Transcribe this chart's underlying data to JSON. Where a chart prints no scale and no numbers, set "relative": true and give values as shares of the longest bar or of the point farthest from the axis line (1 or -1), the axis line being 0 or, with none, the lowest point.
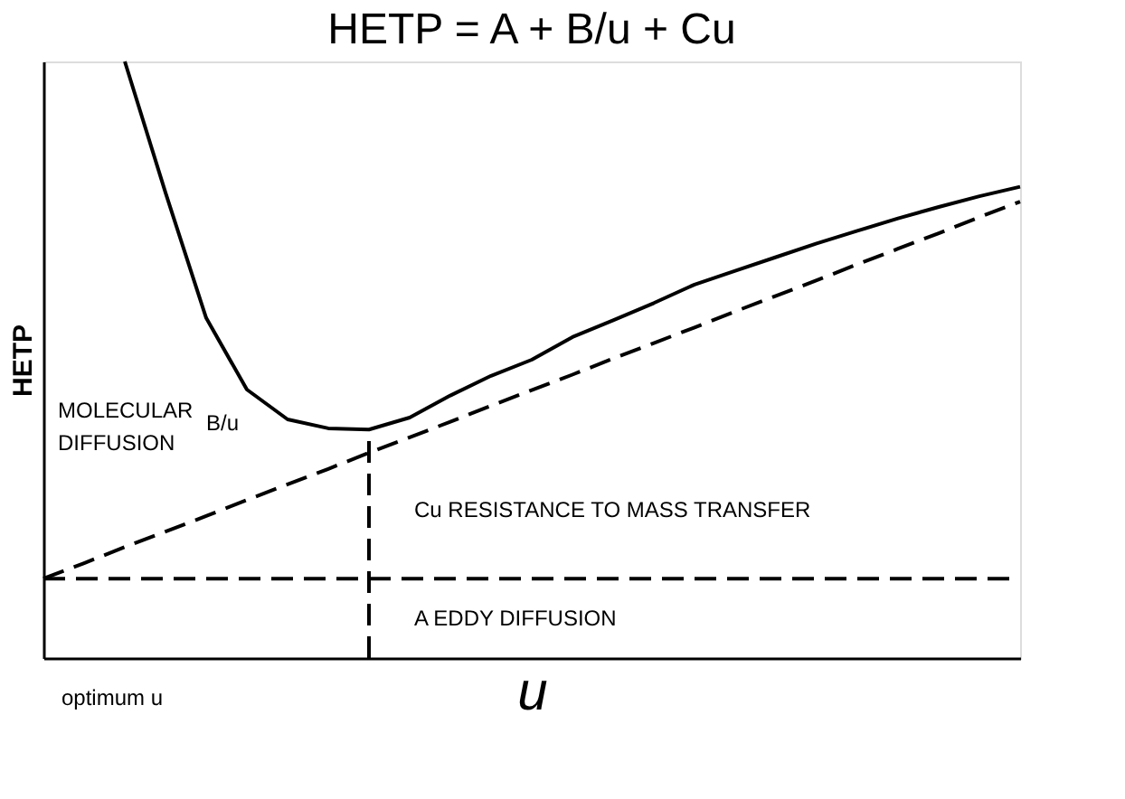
{
  "chart_data": {
    "type": "line",
    "title": "HETP  =  A + B/u + Cu",
    "xlabel": "u",
    "ylabel": "HETP",
    "relative": true,
    "tick_labels": false,
    "grid": false,
    "legend": false,
    "marker": "none",
    "categories": [
      null,
      null,
      null,
      null,
      null,
      null,
      null,
      null,
      null,
      null,
      null,
      null,
      null,
      null,
      null,
      null,
      null,
      null,
      null,
      null,
      null,
      null,
      null,
      null,
      null
    ],
    "series": [
      {
        "color": "#000000",
        "line_style": "solid",
        "values": [
          null,
          null,
          1.0,
          0.78,
          0.57,
          0.45,
          0.4,
          0.385,
          0.383,
          0.403,
          0.44,
          0.473,
          0.5,
          0.538,
          0.566,
          0.595,
          0.626,
          0.649,
          0.672,
          0.695,
          0.716,
          0.737,
          0.756,
          0.774,
          0.79
        ]
      },
      {
        "color": "#000000",
        "line_style": "dashed",
        "values": [
          0.133,
          0.159,
          0.186,
          0.212,
          0.238,
          0.265,
          0.291,
          0.317,
          0.344,
          0.37,
          0.396,
          0.423,
          0.449,
          0.475,
          0.502,
          0.528,
          0.554,
          0.581,
          0.607,
          0.633,
          0.66,
          0.686,
          0.712,
          0.739,
          0.765
        ]
      },
      {
        "color": "#000000",
        "line_style": "dashed",
        "values": [
          0.133,
          0.133,
          0.133,
          0.133,
          0.133,
          0.133,
          0.133,
          0.133,
          0.133,
          0.133,
          0.133,
          0.133,
          0.133,
          0.133,
          0.133,
          0.133,
          0.133,
          0.133,
          0.133,
          0.133,
          0.133,
          0.133,
          0.133,
          0.133,
          0.133
        ]
      }
    ],
    "annotations": [
      "MOLECULAR",
      "DIFFUSION",
      "B/u",
      "Cu RESISTANCE TO MASS TRANSFER",
      "A EDDY DIFFUSION",
      "optimum u"
    ]
  }
}
